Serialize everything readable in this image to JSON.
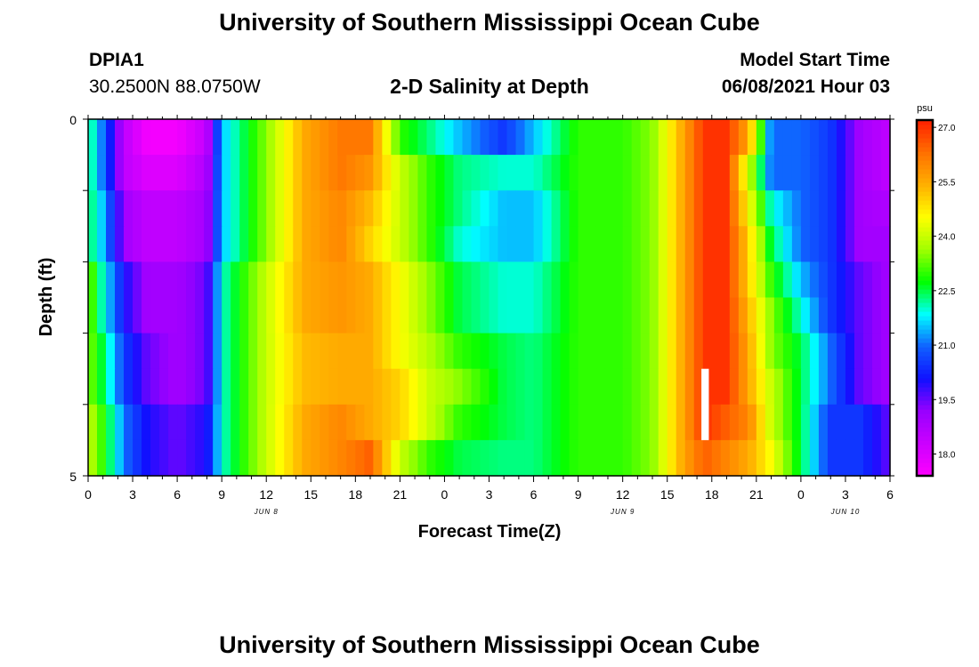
{
  "header": {
    "title": "University of Southern Mississippi Ocean Cube",
    "station_id": "DPIA1",
    "coordinates": "30.2500N  88.0750W",
    "chart_title": "2-D Salinity at Depth",
    "model_label": "Model Start Time",
    "model_time": "06/08/2021 Hour 03"
  },
  "footer": {
    "title": "University of Southern Mississippi Ocean Cube"
  },
  "colors": {
    "ramp": [
      "#ff00ff",
      "#cc00ff",
      "#9900ff",
      "#1010ff",
      "#1060ff",
      "#00ffff",
      "#00ff00",
      "#a0ff00",
      "#ffff00",
      "#ffb000",
      "#ff7000",
      "#ff2000"
    ],
    "frame": "#000000",
    "missing": "#ffffff"
  },
  "chart_data": {
    "type": "heatmap",
    "xlabel": "Forecast Time(Z)",
    "ylabel": "Depth (ft)",
    "y_ticks": [
      "0",
      "5"
    ],
    "y_range": [
      0,
      5
    ],
    "x_ticks": [
      "0",
      "3",
      "6",
      "9",
      "12",
      "15",
      "18",
      "21",
      "0",
      "3",
      "6",
      "9",
      "12",
      "15",
      "18",
      "21",
      "0",
      "3",
      "6"
    ],
    "date_labels": [
      {
        "text": "JUN 8",
        "hour": 12
      },
      {
        "text": "JUN 9",
        "hour": 36
      },
      {
        "text": "JUN 10",
        "hour": 51
      }
    ],
    "colorbar": {
      "unit": "psu",
      "ticks": [
        "18.0",
        "19.5",
        "21.0",
        "22.5",
        "24.0",
        "25.5",
        "27.0"
      ],
      "range": [
        17.4,
        27.2
      ]
    },
    "x_hours_start": 0,
    "x_hours_end": 54,
    "knots_hours": [
      0,
      1,
      2.5,
      4,
      6,
      8,
      9,
      12,
      14.5,
      17,
      19,
      21,
      23,
      25,
      28,
      30,
      33,
      36,
      38,
      40,
      41.5,
      43,
      44.5,
      46,
      48,
      50,
      52,
      54
    ],
    "layers": [
      {
        "depth": "0.0-0.5 ft",
        "values": [
          22.5,
          21.0,
          18.5,
          17.6,
          17.6,
          18.5,
          21.5,
          23.5,
          25.5,
          26.2,
          26.2,
          23.0,
          22.3,
          21.5,
          20.5,
          21.5,
          23.0,
          23.0,
          23.5,
          25.5,
          27.0,
          27.0,
          25.5,
          21.0,
          21.0,
          20.5,
          19.0,
          18.5
        ]
      },
      {
        "depth": "0.5-1.0 ft",
        "values": [
          22.5,
          21.0,
          18.5,
          18.0,
          18.0,
          18.8,
          21.5,
          23.5,
          25.5,
          26.2,
          25.8,
          24.0,
          23.0,
          22.3,
          22.0,
          22.0,
          23.0,
          23.0,
          23.5,
          25.5,
          27.0,
          27.0,
          24.0,
          21.0,
          21.0,
          20.5,
          19.0,
          18.5
        ]
      },
      {
        "depth": "1.0-1.5 ft",
        "values": [
          22.5,
          21.5,
          19.0,
          18.5,
          18.5,
          19.0,
          21.5,
          23.5,
          25.5,
          26.0,
          25.3,
          24.0,
          23.0,
          22.3,
          21.5,
          21.5,
          23.0,
          23.0,
          23.5,
          25.5,
          27.0,
          27.0,
          24.5,
          22.0,
          21.0,
          20.5,
          19.0,
          18.8
        ]
      },
      {
        "depth": "1.5-2.0 ft",
        "values": [
          22.5,
          21.5,
          19.0,
          18.5,
          18.5,
          19.0,
          21.5,
          23.5,
          25.5,
          26.0,
          25.0,
          24.0,
          23.0,
          22.0,
          21.5,
          21.5,
          23.0,
          23.0,
          23.5,
          25.5,
          27.0,
          27.0,
          25.0,
          22.5,
          21.0,
          20.5,
          19.0,
          19.0
        ]
      },
      {
        "depth": "2.0-2.5 ft",
        "values": [
          23.5,
          22.0,
          20.0,
          19.0,
          19.0,
          19.5,
          22.0,
          24.0,
          25.5,
          25.8,
          25.5,
          24.5,
          23.5,
          22.5,
          22.0,
          22.0,
          23.0,
          23.0,
          23.5,
          25.5,
          27.0,
          27.0,
          25.0,
          23.0,
          21.5,
          20.5,
          19.5,
          19.0
        ]
      },
      {
        "depth": "2.5-3.0 ft",
        "values": [
          23.5,
          22.0,
          20.0,
          19.0,
          19.0,
          19.5,
          22.0,
          24.0,
          25.5,
          25.8,
          25.5,
          24.5,
          23.5,
          22.5,
          22.0,
          22.0,
          23.0,
          23.0,
          23.5,
          25.5,
          27.0,
          27.0,
          25.3,
          23.5,
          22.0,
          20.5,
          19.5,
          19.0
        ]
      },
      {
        "depth": "3.0-3.5 ft",
        "values": [
          23.5,
          22.5,
          20.5,
          19.5,
          19.0,
          19.5,
          22.0,
          24.0,
          25.3,
          25.5,
          25.5,
          24.5,
          23.8,
          23.0,
          22.5,
          22.3,
          23.0,
          23.0,
          23.5,
          25.5,
          27.0,
          27.0,
          25.5,
          23.5,
          22.5,
          21.0,
          19.5,
          19.0
        ]
      },
      {
        "depth": "3.5-4.0 ft",
        "values": [
          23.5,
          22.5,
          20.5,
          19.5,
          19.0,
          19.5,
          22.0,
          24.0,
          25.3,
          25.5,
          25.5,
          25.0,
          24.0,
          23.5,
          22.5,
          22.3,
          23.0,
          23.0,
          23.5,
          25.5,
          27.0,
          27.0,
          25.5,
          24.0,
          22.5,
          21.0,
          19.5,
          19.0
        ]
      },
      {
        "depth": "4.0-4.5 ft",
        "values": [
          24.0,
          23.0,
          21.0,
          20.0,
          19.5,
          20.0,
          22.0,
          24.0,
          25.5,
          26.0,
          25.5,
          25.0,
          24.0,
          23.0,
          22.5,
          22.3,
          23.0,
          23.0,
          23.5,
          25.5,
          27.0,
          26.5,
          26.0,
          24.0,
          22.5,
          20.5,
          20.5,
          19.5
        ]
      },
      {
        "depth": "4.5-5.0 ft",
        "values": [
          24.0,
          23.0,
          21.0,
          20.0,
          19.5,
          20.0,
          22.0,
          24.0,
          25.5,
          26.0,
          26.5,
          24.0,
          23.0,
          22.5,
          22.3,
          22.3,
          23.0,
          23.0,
          23.5,
          25.5,
          26.5,
          26.0,
          25.5,
          24.5,
          22.5,
          20.5,
          20.5,
          19.5
        ]
      }
    ],
    "missing_segments": [
      {
        "hour_start": 41.3,
        "hour_end": 41.8,
        "depth_start": 3.5,
        "depth_end": 4.5
      }
    ]
  }
}
